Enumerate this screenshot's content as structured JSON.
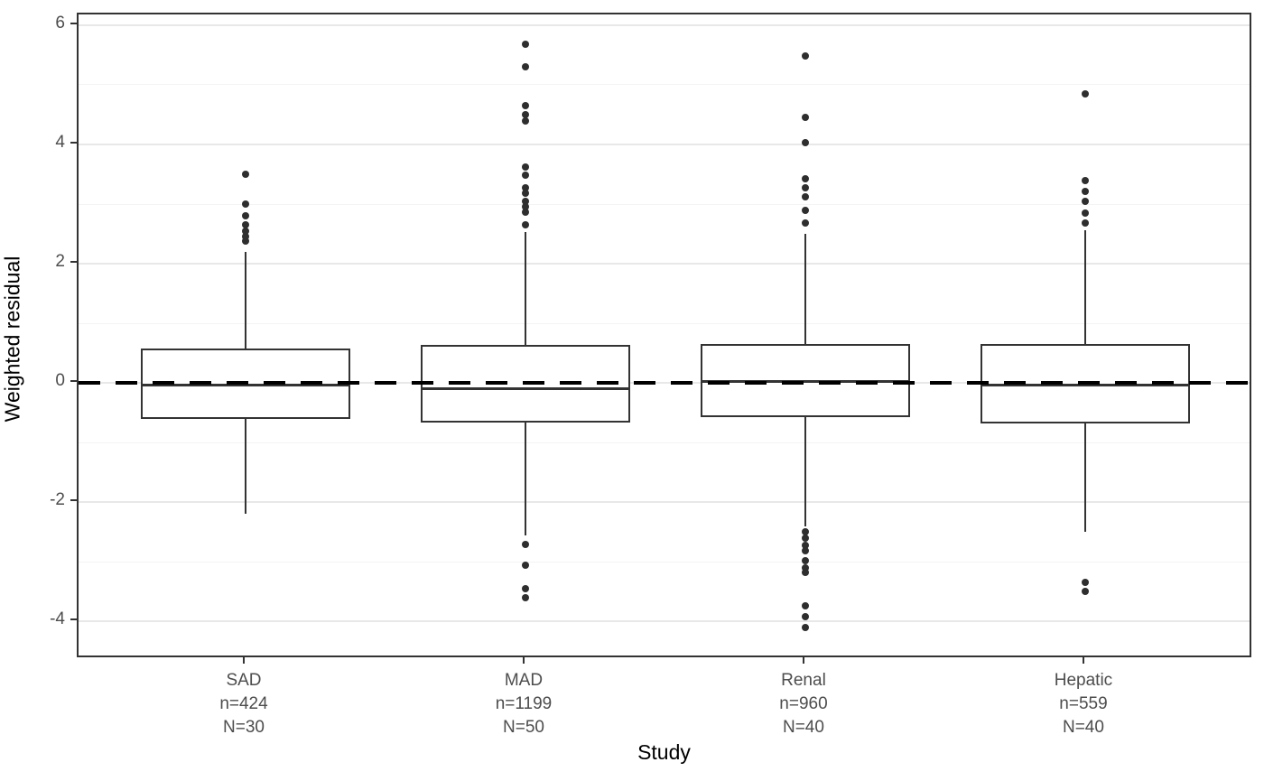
{
  "chart_data": {
    "type": "boxplot",
    "title": "",
    "xlabel": "Study",
    "ylabel": "Weighted residual",
    "ylim": [
      -4.63,
      6.18
    ],
    "grid": true,
    "legend": "none",
    "y_major_ticks": [
      6,
      4,
      2,
      0,
      -2,
      -4
    ],
    "y_minor_gridlines": [
      5,
      3,
      1,
      -1,
      -3
    ],
    "reference_line": {
      "y": 0,
      "style": "dashed",
      "color": "#000000"
    },
    "categories": [
      {
        "label": "SAD",
        "n_label": "n=424",
        "N_label": "N=30",
        "stats": {
          "whisker_low": -2.2,
          "q1": -0.61,
          "median": -0.03,
          "q3": 0.58,
          "whisker_high": 2.2
        },
        "outliers": [
          2.38,
          2.45,
          2.55,
          2.65,
          2.8,
          3.0,
          3.5
        ]
      },
      {
        "label": "MAD",
        "n_label": "n=1199",
        "N_label": "N=50",
        "stats": {
          "whisker_low": -2.55,
          "q1": -0.67,
          "median": -0.09,
          "q3": 0.64,
          "whisker_high": 2.53
        },
        "outliers": [
          2.65,
          2.87,
          2.95,
          3.05,
          3.18,
          3.28,
          3.48,
          3.62,
          4.4,
          4.5,
          4.65,
          5.3,
          5.68,
          -2.7,
          -3.05,
          -3.45,
          -3.6
        ]
      },
      {
        "label": "Renal",
        "n_label": "n=960",
        "N_label": "N=40",
        "stats": {
          "whisker_low": -2.41,
          "q1": -0.57,
          "median": 0.03,
          "q3": 0.66,
          "whisker_high": 2.5
        },
        "outliers": [
          2.68,
          2.9,
          3.12,
          3.28,
          3.42,
          4.03,
          4.45,
          5.48,
          -2.5,
          -2.6,
          -2.72,
          -2.82,
          -2.98,
          -3.1,
          -3.17,
          -3.74,
          -3.92,
          -4.1
        ]
      },
      {
        "label": "Hepatic",
        "n_label": "n=559",
        "N_label": "N=40",
        "stats": {
          "whisker_low": -2.49,
          "q1": -0.68,
          "median": -0.04,
          "q3": 0.66,
          "whisker_high": 2.56
        },
        "outliers": [
          2.69,
          2.85,
          3.04,
          3.22,
          3.4,
          4.85,
          -3.35,
          -3.5
        ]
      }
    ],
    "colors": {
      "box_stroke": "#333333",
      "point": "#2e2e2e",
      "grid_major": "#e8e8e8",
      "grid_minor": "#f4f4f4",
      "tick_text": "#4d4d4d",
      "axis_title_text": "#000000",
      "reference_line": "#000000",
      "panel_border": "#333333",
      "background": "#ffffff"
    }
  }
}
